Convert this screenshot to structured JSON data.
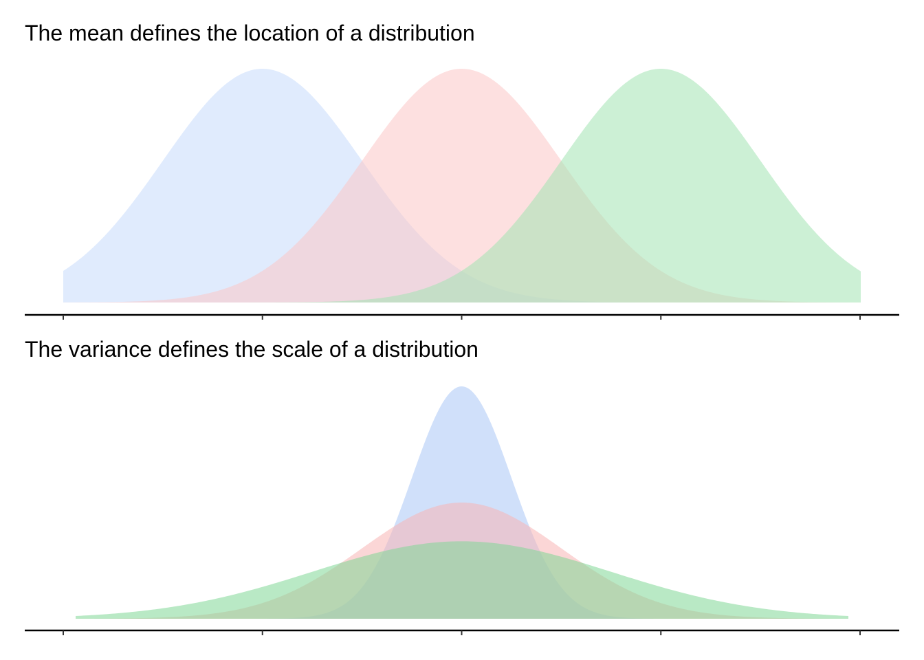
{
  "chart_data": [
    {
      "type": "area",
      "title": "The mean defines the location of a distribution",
      "xlabel": "",
      "ylabel": "",
      "xlim": [
        -4,
        4
      ],
      "x_ticks": [
        -4,
        -2,
        0,
        2,
        4
      ],
      "x_tick_labels": [],
      "grid": false,
      "legend": "none",
      "series": [
        {
          "mean": -2,
          "sd": 1,
          "color": "#c6dbfb",
          "opacity": 0.55
        },
        {
          "mean": 0,
          "sd": 1,
          "color": "#fbc6c6",
          "opacity": 0.55
        },
        {
          "mean": 2,
          "sd": 1,
          "color": "#a3e3b3",
          "opacity": 0.55
        }
      ]
    },
    {
      "type": "area",
      "title": "The variance defines the scale of a distribution",
      "xlabel": "",
      "ylabel": "",
      "xlim": [
        -4,
        4
      ],
      "x_ticks": [
        -4,
        -2,
        0,
        2,
        4
      ],
      "x_tick_labels": [],
      "grid": false,
      "legend": "none",
      "series": [
        {
          "mean": 0,
          "sd": 0.5,
          "color": "#a9c7f6",
          "opacity": 0.55
        },
        {
          "mean": 0,
          "sd": 1,
          "color": "#f8b4b4",
          "opacity": 0.55
        },
        {
          "mean": 0,
          "sd": 1.5,
          "color": "#7fd796",
          "opacity": 0.55
        }
      ]
    }
  ]
}
